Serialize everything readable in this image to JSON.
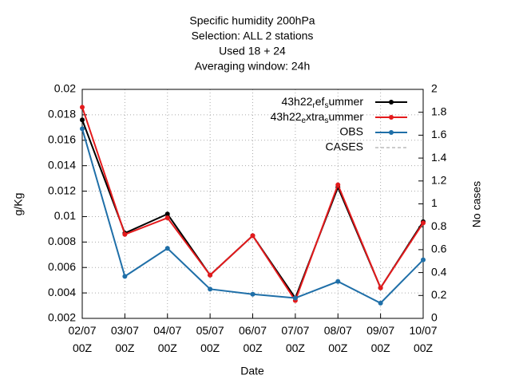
{
  "chart_data": {
    "type": "line",
    "title": [
      "Specific humidity 200hPa",
      "Selection: ALL      2 stations",
      "Used  18  + 24",
      "Averaging window: 24h"
    ],
    "x_label": "Date",
    "y_label": "g/Kg",
    "y2_label": "No cases",
    "categories": [
      "02/07 00Z",
      "03/07 00Z",
      "04/07 00Z",
      "05/07 00Z",
      "06/07 00Z",
      "07/07 00Z",
      "08/07 00Z",
      "09/07 00Z",
      "10/07 00Z"
    ],
    "series": [
      {
        "name": "43h22_ref_summer",
        "color": "#000000",
        "values": [
          0.0176,
          0.0087,
          0.0102,
          0.0054,
          0.0085,
          0.0036,
          0.0123,
          0.0044,
          0.0096
        ]
      },
      {
        "name": "43h22_extra_summer",
        "color": "#e41a1c",
        "values": [
          0.0186,
          0.0086,
          0.0099,
          0.0054,
          0.0085,
          0.0034,
          0.0125,
          0.0044,
          0.0095
        ]
      },
      {
        "name": "OBS",
        "color": "#1f6fa8",
        "values": [
          0.0169,
          0.0053,
          0.0075,
          0.0043,
          0.0039,
          0.0036,
          0.0049,
          0.0032,
          0.0066
        ]
      },
      {
        "name": "CASES",
        "color": "#999999",
        "dashed": true,
        "axis": "y2",
        "values": [
          null,
          null,
          null,
          null,
          null,
          null,
          null,
          null,
          null
        ]
      }
    ],
    "ylim": [
      0.002,
      0.02
    ],
    "yticks": [
      0.002,
      0.004,
      0.006,
      0.008,
      0.01,
      0.012,
      0.014,
      0.016,
      0.018,
      0.02
    ],
    "y2lim": [
      0,
      2
    ],
    "y2ticks": [
      0,
      0.2,
      0.4,
      0.6,
      0.8,
      1,
      1.2,
      1.4,
      1.6,
      1.8,
      2
    ],
    "grid": true,
    "legend": "top-right"
  }
}
